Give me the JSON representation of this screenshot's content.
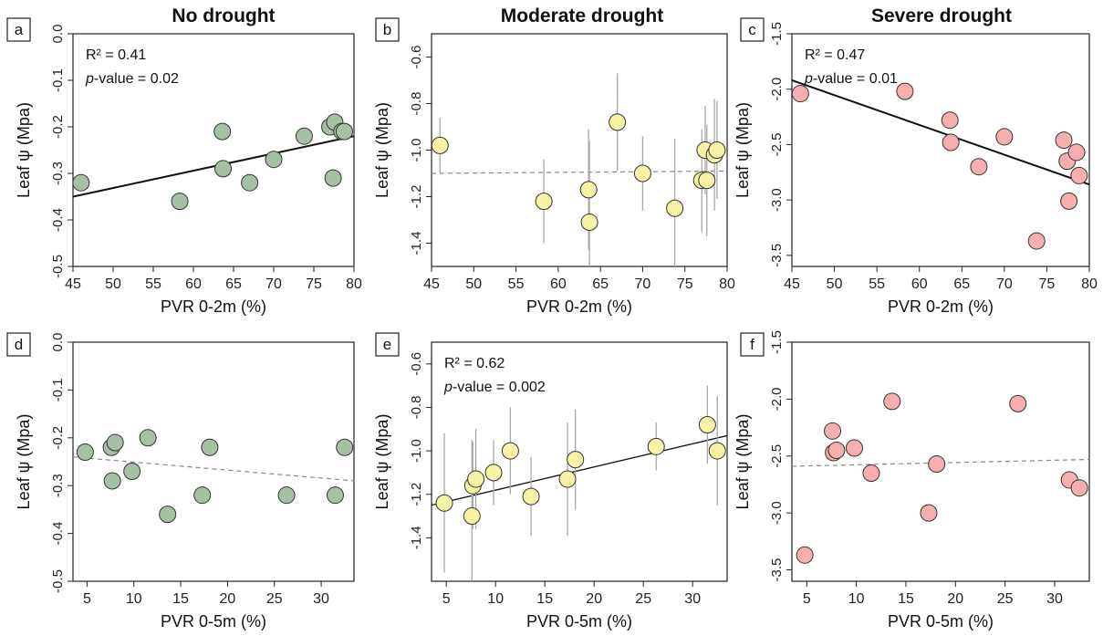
{
  "column_titles": [
    "No drought",
    "Moderate drought",
    "Severe drought"
  ],
  "colors": {
    "no_drought_fill": "#a6c0a4",
    "moderate_fill": "#f7f2a6",
    "severe_fill": "#f6aeae",
    "marker_stroke": "#333333",
    "fit_line": "#111111",
    "nonsig_line": "#888888",
    "error_bar": "#a8a8a8"
  },
  "chart_data": [
    {
      "panel": "a",
      "type": "scatter",
      "xlabel": "PVR 0-2m (%)",
      "ylabel": "Leaf ψ (Mpa)",
      "xlim": [
        45,
        80
      ],
      "ylim": [
        -0.5,
        0.0
      ],
      "xticks": [
        45,
        50,
        55,
        60,
        65,
        70,
        75,
        80
      ],
      "yticks": [
        0.0,
        -0.1,
        -0.2,
        -0.3,
        -0.4,
        -0.5
      ],
      "yticklabels": [
        "0.0",
        "-0.1",
        "-0.2",
        "-0.3",
        "-0.4",
        "-0.5"
      ],
      "x": [
        46.0,
        58.3,
        63.6,
        63.7,
        67.0,
        70.0,
        73.8,
        77.0,
        77.4,
        77.6,
        78.5,
        78.8
      ],
      "y": [
        -0.32,
        -0.36,
        -0.21,
        -0.29,
        -0.32,
        -0.27,
        -0.22,
        -0.2,
        -0.31,
        -0.19,
        -0.21,
        -0.21
      ],
      "fill": "no_drought_fill",
      "fit": {
        "x": [
          45,
          80
        ],
        "y": [
          -0.35,
          -0.22
        ],
        "style": "solid"
      },
      "annotation": {
        "r2": "R² = 0.41",
        "p_label": "p",
        "p_value": "-value = 0.02"
      }
    },
    {
      "panel": "b",
      "type": "scatter",
      "xlabel": "PVR 0-2m (%)",
      "ylabel": "Leaf ψ (Mpa)",
      "xlim": [
        45,
        80
      ],
      "ylim": [
        -1.5,
        -0.5
      ],
      "xticks": [
        45,
        50,
        55,
        60,
        65,
        70,
        75,
        80
      ],
      "yticks": [
        -0.6,
        -0.8,
        -1.0,
        -1.2,
        -1.4
      ],
      "yticklabels": [
        "-0.6",
        "-0.8",
        "-1.0",
        "-1.2",
        "-1.4"
      ],
      "x": [
        46.0,
        58.3,
        63.6,
        63.7,
        67.0,
        70.0,
        73.8,
        77.0,
        77.4,
        77.6,
        78.5,
        78.8
      ],
      "y": [
        -0.98,
        -1.22,
        -1.17,
        -1.31,
        -0.88,
        -1.1,
        -1.25,
        -1.13,
        -1.0,
        -1.13,
        -1.02,
        -1.0
      ],
      "yerr": [
        0.12,
        0.18,
        0.26,
        0.35,
        0.21,
        0.16,
        0.3,
        0.22,
        0.19,
        0.24,
        0.24,
        0.21
      ],
      "fill": "moderate_fill",
      "fit": {
        "x": [
          45,
          80
        ],
        "y": [
          -1.1,
          -1.09
        ],
        "style": "dashed"
      }
    },
    {
      "panel": "c",
      "type": "scatter",
      "xlabel": "PVR 0-2m (%)",
      "ylabel": "Leaf ψ (Mpa)",
      "xlim": [
        45,
        80
      ],
      "ylim": [
        -3.6,
        -1.5
      ],
      "xticks": [
        45,
        50,
        55,
        60,
        65,
        70,
        75,
        80
      ],
      "yticks": [
        -1.5,
        -2.0,
        -2.5,
        -3.0,
        -3.5
      ],
      "yticklabels": [
        "-1.5",
        "-2.0",
        "-2.5",
        "-3.0",
        "-3.5"
      ],
      "x": [
        46.0,
        58.3,
        63.6,
        63.7,
        67.0,
        70.0,
        73.8,
        77.0,
        77.4,
        77.6,
        78.5,
        78.8
      ],
      "y": [
        -2.04,
        -2.02,
        -2.28,
        -2.48,
        -2.7,
        -2.43,
        -3.37,
        -2.46,
        -2.65,
        -3.01,
        -2.57,
        -2.78
      ],
      "fill": "severe_fill",
      "fit": {
        "x": [
          45,
          80
        ],
        "y": [
          -1.92,
          -2.86
        ],
        "style": "solid"
      },
      "annotation": {
        "r2": "R² = 0.47",
        "p_label": "p",
        "p_value": "-value = 0.01"
      }
    },
    {
      "panel": "d",
      "type": "scatter",
      "xlabel": "PVR 0-5m (%)",
      "ylabel": "Leaf ψ (Mpa)",
      "xlim": [
        3.5,
        33.5
      ],
      "ylim": [
        -0.5,
        0.0
      ],
      "xticks": [
        5,
        10,
        15,
        20,
        25,
        30
      ],
      "yticks": [
        0.0,
        -0.1,
        -0.2,
        -0.3,
        -0.4,
        -0.5
      ],
      "yticklabels": [
        "0.0",
        "-0.1",
        "-0.2",
        "-0.3",
        "-0.4",
        "-0.5"
      ],
      "x": [
        4.8,
        7.6,
        7.7,
        8.0,
        9.8,
        11.5,
        13.6,
        17.3,
        18.1,
        26.3,
        31.5,
        32.5
      ],
      "y": [
        -0.23,
        -0.22,
        -0.29,
        -0.21,
        -0.27,
        -0.2,
        -0.36,
        -0.32,
        -0.22,
        -0.32,
        -0.32,
        -0.22
      ],
      "fill": "no_drought_fill",
      "fit": {
        "x": [
          3.5,
          33.5
        ],
        "y": [
          -0.24,
          -0.29
        ],
        "style": "dashed"
      }
    },
    {
      "panel": "e",
      "type": "scatter",
      "xlabel": "PVR 0-5m (%)",
      "ylabel": "Leaf ψ (Mpa)",
      "xlim": [
        3.5,
        33.5
      ],
      "ylim": [
        -1.6,
        -0.5
      ],
      "xticks": [
        5,
        10,
        15,
        20,
        25,
        30
      ],
      "yticks": [
        -0.6,
        -0.8,
        -1.0,
        -1.2,
        -1.4
      ],
      "yticklabels": [
        "-0.6",
        "-0.8",
        "-1.0",
        "-1.2",
        "-1.4"
      ],
      "x": [
        4.8,
        7.6,
        7.7,
        8.0,
        9.8,
        11.5,
        13.6,
        17.3,
        18.1,
        26.3,
        31.5,
        32.5
      ],
      "y": [
        -1.24,
        -1.3,
        -1.16,
        -1.13,
        -1.1,
        -1.0,
        -1.21,
        -1.13,
        -1.04,
        -0.98,
        -0.88,
        -1.0
      ],
      "yerr": [
        0.32,
        0.35,
        0.2,
        0.23,
        0.15,
        0.2,
        0.18,
        0.26,
        0.23,
        0.11,
        0.18,
        0.25
      ],
      "fill": "moderate_fill",
      "fit": {
        "x": [
          3.5,
          33.5
        ],
        "y": [
          -1.25,
          -0.93
        ],
        "style": "solid"
      },
      "annotation": {
        "r2": "R² = 0.62",
        "p_label": "p",
        "p_value": "-value = 0.002"
      }
    },
    {
      "panel": "f",
      "type": "scatter",
      "xlabel": "PVR 0-5m (%)",
      "ylabel": "Leaf ψ (Mpa)",
      "xlim": [
        3.5,
        33.5
      ],
      "ylim": [
        -3.6,
        -1.5
      ],
      "xticks": [
        5,
        10,
        15,
        20,
        25,
        30
      ],
      "yticks": [
        -1.5,
        -2.0,
        -2.5,
        -3.0,
        -3.5
      ],
      "yticklabels": [
        "-1.5",
        "-2.0",
        "-2.5",
        "-3.0",
        "-3.5"
      ],
      "x": [
        4.8,
        7.6,
        7.7,
        8.0,
        9.8,
        11.5,
        13.6,
        17.3,
        18.1,
        26.3,
        31.5,
        32.5
      ],
      "y": [
        -3.37,
        -2.28,
        -2.47,
        -2.45,
        -2.43,
        -2.65,
        -2.02,
        -3.0,
        -2.57,
        -2.04,
        -2.71,
        -2.78
      ],
      "fill": "severe_fill",
      "fit": {
        "x": [
          3.5,
          33.5
        ],
        "y": [
          -2.59,
          -2.53
        ],
        "style": "dashed"
      }
    }
  ]
}
